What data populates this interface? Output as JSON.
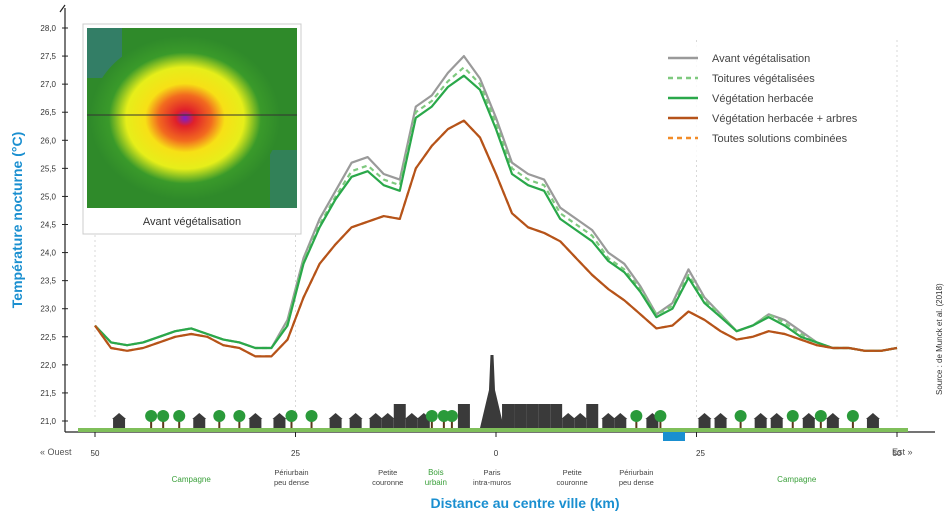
{
  "chart_data": {
    "type": "line",
    "ylabel": "Température nocturne (°C)",
    "xlabel": "Distance au centre ville (km)",
    "ylim": [
      20.8,
      28.2
    ],
    "xlim": [
      -50,
      50
    ],
    "grid": false,
    "legend_position": "top-right",
    "y_ticks": [
      "28,0",
      "27,5",
      "27,0",
      "26,5",
      "26,0",
      "25,5",
      "25,0",
      "24,5",
      "24,0",
      "23,5",
      "23,0",
      "22,5",
      "22,0",
      "21,5",
      "21,0"
    ],
    "x_ticks": [
      "50",
      "25",
      "0",
      "25",
      "50"
    ],
    "x_end_labels": {
      "left": "« Ouest",
      "right": "Est »"
    },
    "zones": [
      {
        "label": "Campagne",
        "km": -38,
        "green": true
      },
      {
        "label": "Périurbain peu dense",
        "km": -25.5,
        "green": false
      },
      {
        "label": "Petite couronne",
        "km": -13.5,
        "green": false
      },
      {
        "label": "Bois urbain",
        "km": -7.5,
        "green": true
      },
      {
        "label": "Paris intra-muros",
        "km": -0.5,
        "green": false
      },
      {
        "label": "Petite couronne",
        "km": 9.5,
        "green": false
      },
      {
        "label": "Périurbain peu dense",
        "km": 17.5,
        "green": false
      },
      {
        "label": "Campagne",
        "km": 37.5,
        "green": true
      }
    ],
    "lake_label": "Lac",
    "source": "Source : de Munck et al. (2018)",
    "inset_caption": "Avant végétalisation",
    "x": [
      -50,
      -48,
      -46,
      -44,
      -42,
      -40,
      -38,
      -36,
      -34,
      -32,
      -30,
      -28,
      -26,
      -24,
      -22,
      -20,
      -18,
      -16,
      -14,
      -12,
      -10,
      -8,
      -6,
      -4,
      -2,
      0,
      2,
      4,
      6,
      8,
      10,
      12,
      14,
      16,
      18,
      20,
      22,
      24,
      26,
      28,
      30,
      32,
      34,
      36,
      38,
      40,
      42,
      44,
      46,
      48,
      50
    ],
    "series": [
      {
        "name": "Avant végétalisation",
        "color": "#9a9a9a",
        "dash": "none",
        "values": [
          22.7,
          22.4,
          22.35,
          22.4,
          22.5,
          22.6,
          22.65,
          22.55,
          22.45,
          22.4,
          22.3,
          22.3,
          22.8,
          23.9,
          24.6,
          25.1,
          25.6,
          25.7,
          25.4,
          25.3,
          26.6,
          26.8,
          27.2,
          27.5,
          27.1,
          26.4,
          25.6,
          25.4,
          25.3,
          24.8,
          24.6,
          24.4,
          24.0,
          23.8,
          23.4,
          22.9,
          23.1,
          23.7,
          23.2,
          22.9,
          22.6,
          22.7,
          22.9,
          22.8,
          22.6,
          22.4,
          22.3,
          22.3,
          22.25,
          22.25,
          22.3
        ]
      },
      {
        "name": "Toitures végétalisées",
        "color": "#7fc97f",
        "dash": "5,4",
        "values": [
          22.7,
          22.4,
          22.35,
          22.4,
          22.5,
          22.6,
          22.65,
          22.55,
          22.45,
          22.4,
          22.3,
          22.3,
          22.75,
          23.85,
          24.5,
          25.0,
          25.45,
          25.55,
          25.3,
          25.2,
          26.5,
          26.7,
          27.05,
          27.3,
          27.0,
          26.3,
          25.5,
          25.3,
          25.2,
          24.7,
          24.5,
          24.3,
          23.9,
          23.7,
          23.35,
          22.9,
          23.05,
          23.6,
          23.15,
          22.9,
          22.6,
          22.7,
          22.9,
          22.75,
          22.55,
          22.4,
          22.3,
          22.3,
          22.25,
          22.25,
          22.3
        ]
      },
      {
        "name": "Végétation herbacée",
        "color": "#2aa84a",
        "dash": "none",
        "values": [
          22.7,
          22.4,
          22.35,
          22.4,
          22.5,
          22.6,
          22.65,
          22.55,
          22.45,
          22.4,
          22.3,
          22.3,
          22.7,
          23.8,
          24.45,
          24.95,
          25.35,
          25.45,
          25.2,
          25.1,
          26.4,
          26.6,
          26.95,
          27.15,
          26.9,
          26.2,
          25.4,
          25.2,
          25.1,
          24.6,
          24.4,
          24.2,
          23.85,
          23.65,
          23.3,
          22.85,
          23.0,
          23.55,
          23.1,
          22.85,
          22.6,
          22.7,
          22.85,
          22.7,
          22.5,
          22.4,
          22.3,
          22.3,
          22.25,
          22.25,
          22.3
        ]
      },
      {
        "name": "Végétation herbacée + arbres",
        "color": "#b5531a",
        "dash": "none",
        "values": [
          22.7,
          22.3,
          22.25,
          22.3,
          22.4,
          22.5,
          22.55,
          22.5,
          22.35,
          22.3,
          22.15,
          22.15,
          22.45,
          23.2,
          23.8,
          24.15,
          24.45,
          24.55,
          24.65,
          24.6,
          25.5,
          25.9,
          26.2,
          26.35,
          26.05,
          25.4,
          24.7,
          24.45,
          24.35,
          24.2,
          23.9,
          23.6,
          23.35,
          23.15,
          22.9,
          22.65,
          22.7,
          22.95,
          22.8,
          22.6,
          22.45,
          22.5,
          22.6,
          22.55,
          22.45,
          22.35,
          22.3,
          22.3,
          22.25,
          22.25,
          22.3
        ]
      },
      {
        "name": "Toutes solutions combinées",
        "color": "#f28c28",
        "dash": "5,4",
        "values": [
          22.7,
          22.3,
          22.25,
          22.3,
          22.4,
          22.5,
          22.55,
          22.5,
          22.35,
          22.3,
          22.15,
          22.15,
          22.45,
          23.2,
          23.8,
          24.15,
          24.45,
          24.55,
          24.65,
          24.6,
          25.5,
          25.9,
          26.2,
          26.35,
          26.05,
          25.4,
          24.7,
          24.45,
          24.35,
          24.2,
          23.9,
          23.6,
          23.35,
          23.15,
          22.9,
          22.65,
          22.7,
          22.95,
          22.8,
          22.6,
          22.45,
          22.5,
          22.6,
          22.55,
          22.45,
          22.35,
          22.3,
          22.3,
          22.25,
          22.25,
          22.3
        ]
      }
    ]
  }
}
